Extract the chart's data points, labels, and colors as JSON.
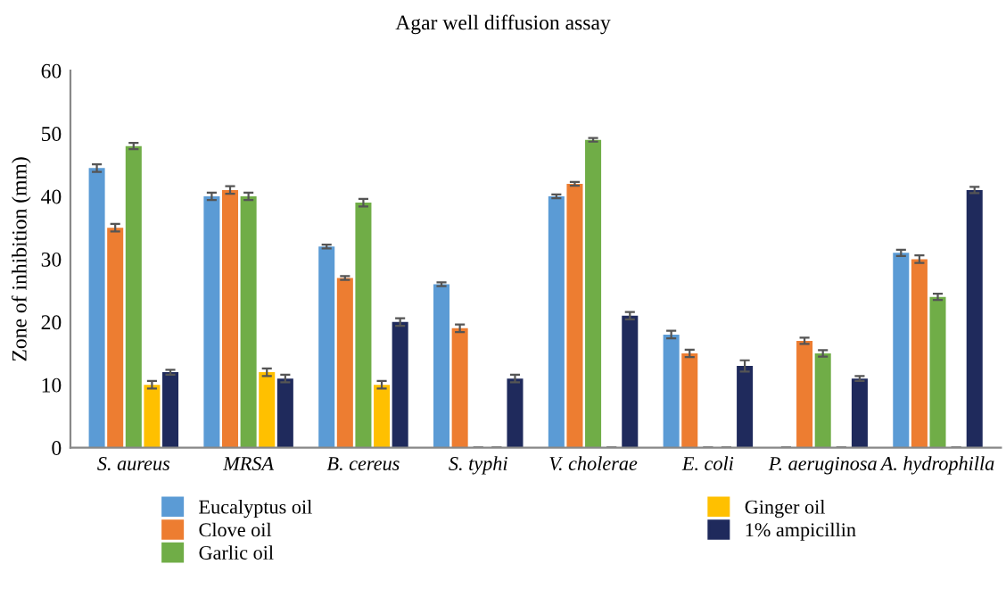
{
  "chart_data": {
    "type": "bar",
    "title": "Agar well diffusion assay",
    "ylabel": "Zone of inhibition (mm)",
    "categories": [
      "S. aureus",
      "MRSA",
      "B. cereus",
      "S. typhi",
      "V. cholerae",
      "E. coli",
      "P. aeruginosa",
      "A. hydrophilla"
    ],
    "series": [
      {
        "name": "Eucalyptus oil",
        "color": "#5b9bd5",
        "values": [
          44.5,
          40,
          32,
          26,
          40,
          18,
          0,
          31
        ],
        "errors": [
          0.6,
          0.6,
          0.3,
          0.3,
          0.3,
          0.6,
          0,
          0.5
        ]
      },
      {
        "name": "Clove oil",
        "color": "#ed7d31",
        "values": [
          35,
          41,
          27,
          19,
          42,
          15,
          17,
          30
        ],
        "errors": [
          0.6,
          0.6,
          0.3,
          0.6,
          0.3,
          0.6,
          0.5,
          0.6
        ]
      },
      {
        "name": "Garlic oil",
        "color": "#70ad47",
        "values": [
          48,
          40,
          39,
          0,
          49,
          0,
          15,
          24
        ],
        "errors": [
          0.5,
          0.6,
          0.6,
          0,
          0.3,
          0,
          0.5,
          0.5
        ]
      },
      {
        "name": "Ginger oil",
        "color": "#ffc000",
        "values": [
          10,
          12,
          10,
          0,
          0,
          0,
          0,
          0
        ],
        "errors": [
          0.6,
          0.6,
          0.6,
          0,
          0,
          0,
          0,
          0
        ]
      },
      {
        "name": "1% ampicillin",
        "color": "#1f2a5c",
        "values": [
          12,
          11,
          20,
          11,
          21,
          13,
          11,
          41
        ],
        "errors": [
          0.4,
          0.6,
          0.6,
          0.6,
          0.6,
          0.9,
          0.4,
          0.5
        ]
      }
    ],
    "ylim": [
      0,
      60
    ],
    "yticks": [
      0,
      10,
      20,
      30,
      40,
      50,
      60
    ],
    "grid": false,
    "legend": "bottom"
  }
}
